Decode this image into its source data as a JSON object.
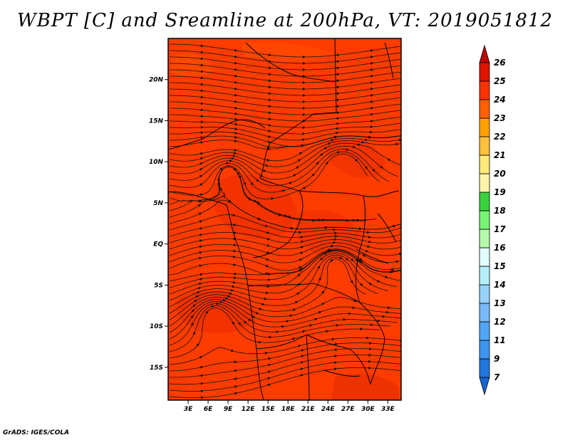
{
  "title": "WBPT [C] and Sreamline at 200hPa, VT: 2019051812",
  "footer": "GrADS: IGES/COLA",
  "chart_data": {
    "type": "heatmap",
    "title": "WBPT [C] and Sreamline at 200hPa, VT: 2019051812",
    "variable": "WBPT [C]",
    "overlay": "streamlines",
    "level": "200hPa",
    "valid_time": "2019051812",
    "lon_range": [
      0,
      35
    ],
    "lat_range": [
      -19,
      25
    ],
    "x_tick_labels": [
      "3E",
      "6E",
      "9E",
      "12E",
      "15E",
      "18E",
      "21E",
      "24E",
      "27E",
      "30E",
      "33E"
    ],
    "x_tick_values": [
      3,
      6,
      9,
      12,
      15,
      18,
      21,
      24,
      27,
      30,
      33
    ],
    "y_tick_labels": [
      "20N",
      "15N",
      "10N",
      "5N",
      "EQ",
      "5S",
      "10S",
      "15S"
    ],
    "y_tick_values": [
      20,
      15,
      10,
      5,
      0,
      -5,
      -10,
      -15
    ],
    "dominant_range": [
      23,
      25
    ],
    "colorbar": {
      "labels": [
        "7",
        "9",
        "11",
        "12",
        "13",
        "14",
        "15",
        "16",
        "17",
        "18",
        "19",
        "20",
        "21",
        "22",
        "23",
        "24",
        "25",
        "26"
      ],
      "colors": [
        "#1464d2",
        "#1e78dc",
        "#3c96f0",
        "#50a5f5",
        "#78b9fa",
        "#96d2fa",
        "#b4f0fa",
        "#e1ffff",
        "#b4faaa",
        "#78f573",
        "#37d23c",
        "#fff5aa",
        "#ffe978",
        "#ffc03c",
        "#ffa000",
        "#ff6000",
        "#ff3200",
        "#e11400",
        "#c00000"
      ]
    }
  }
}
